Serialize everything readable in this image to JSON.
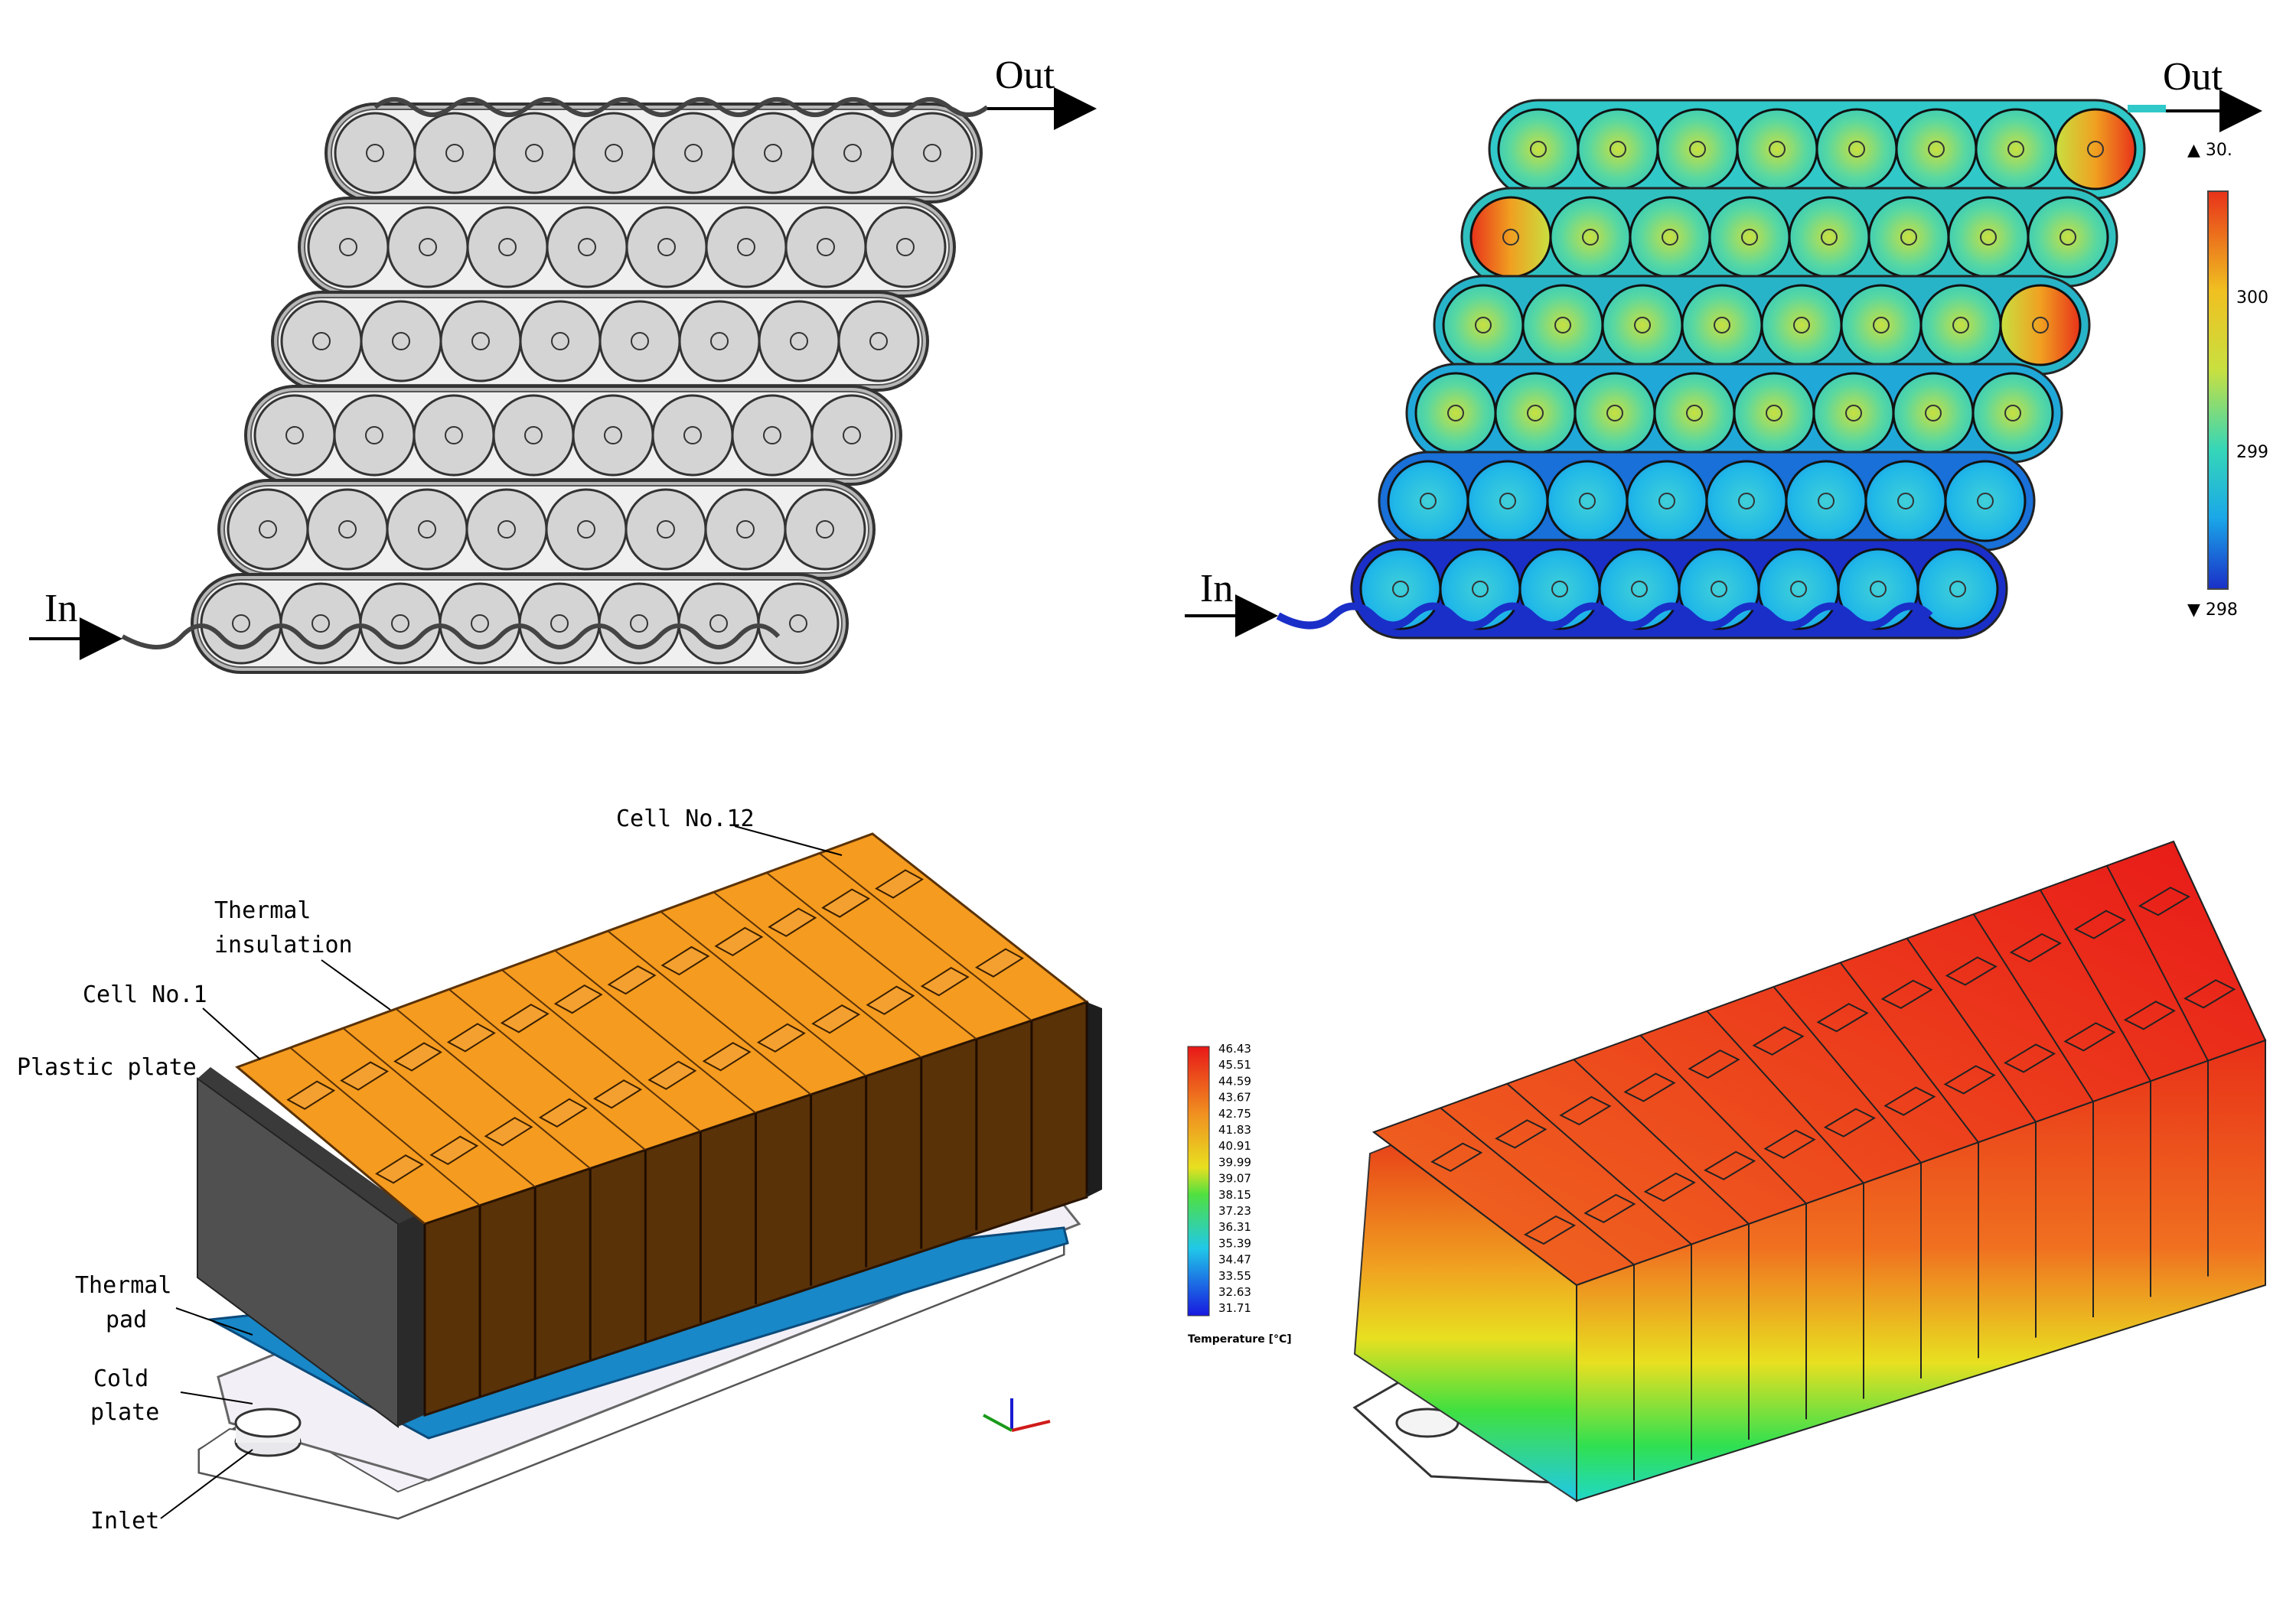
{
  "panel_a": {
    "in_label": "In",
    "out_label": "Out"
  },
  "panel_b": {
    "in_label": "In",
    "out_label": "Out",
    "scale": {
      "max_label": "▲ 30.",
      "tick_300": "300",
      "tick_299": "299",
      "min_label": "▼ 298"
    },
    "colors": {
      "hot": "#e8321a",
      "warm": "#f6e21c",
      "mid": "#35d6b8",
      "cool": "#1aa8e8",
      "cold": "#1a2fc8"
    }
  },
  "panel_c": {
    "labels": {
      "cell12": "Cell No.12",
      "insulation_line1": "Thermal",
      "insulation_line2": "insulation",
      "cell1": "Cell No.1",
      "plastic": "Plastic plate",
      "pad_line1": "Thermal",
      "pad_line2": "pad",
      "cold_line1": "Cold",
      "cold_line2": "plate",
      "inlet": "Inlet"
    },
    "colors": {
      "cell_top": "#f59b1f",
      "cell_front": "#5a3208",
      "plastic": "#4a4a4a",
      "pad": "#1888c8"
    }
  },
  "panel_d": {
    "legend_values": [
      "46.43",
      "45.51",
      "44.59",
      "43.67",
      "42.75",
      "41.83",
      "40.91",
      "39.99",
      "39.07",
      "38.15",
      "37.23",
      "36.31",
      "35.39",
      "34.47",
      "33.55",
      "32.63",
      "31.71"
    ],
    "legend_title": "Temperature [°C]"
  }
}
